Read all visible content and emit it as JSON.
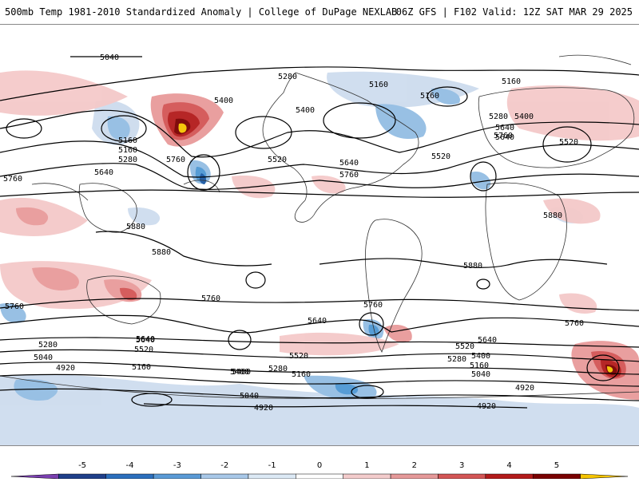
{
  "header": {
    "title": "500mb Temp 1981-2010 Standardized Anomaly | College of DuPage NEXLAB",
    "run_info": "06Z GFS | F102 Valid: 12Z SAT MAR 29 2025"
  },
  "map": {
    "contour_labels": [
      "5040",
      "5280",
      "5160",
      "5160",
      "5160",
      "5400",
      "5400",
      "5160",
      "5640",
      "5280",
      "5160",
      "5400",
      "5640",
      "5760",
      "5760",
      "5520",
      "5280",
      "5640",
      "5760",
      "5520",
      "5520",
      "5640",
      "5760",
      "5880",
      "5880",
      "5880",
      "5880",
      "5760",
      "5760",
      "5760",
      "5640",
      "5640",
      "5520",
      "5400",
      "5280",
      "5160",
      "5040",
      "4920",
      "5640",
      "5520",
      "5400",
      "5280",
      "5160",
      "5040",
      "4920",
      "5520",
      "5640",
      "5400",
      "5280",
      "5160",
      "5040",
      "4920",
      "4920",
      "5760"
    ],
    "colors": {
      "neg1": "#cddcee",
      "neg2": "#93bde3",
      "neg3": "#4d97d3",
      "neg4": "#1b5aa6",
      "neg5": "#7a3fb0",
      "pos1": "#f4c9c9",
      "pos2": "#e89a9a",
      "pos3": "#d35555",
      "pos4": "#b31b1b",
      "pos5": "#7a0000",
      "pos6": "#f5c400"
    }
  },
  "colorbar": {
    "ticks": [
      "-5",
      "-4",
      "-3",
      "-2",
      "-1",
      "0",
      "1",
      "2",
      "3",
      "4",
      "5"
    ],
    "colors": [
      "#7a3fb0",
      "#1f3f8a",
      "#2b6fbd",
      "#5a9ad6",
      "#a8c8e8",
      "#dce9f5",
      "#ffffff",
      "#f3cccc",
      "#e59999",
      "#d35555",
      "#b31b1b",
      "#7a0000",
      "#f5c400"
    ]
  }
}
